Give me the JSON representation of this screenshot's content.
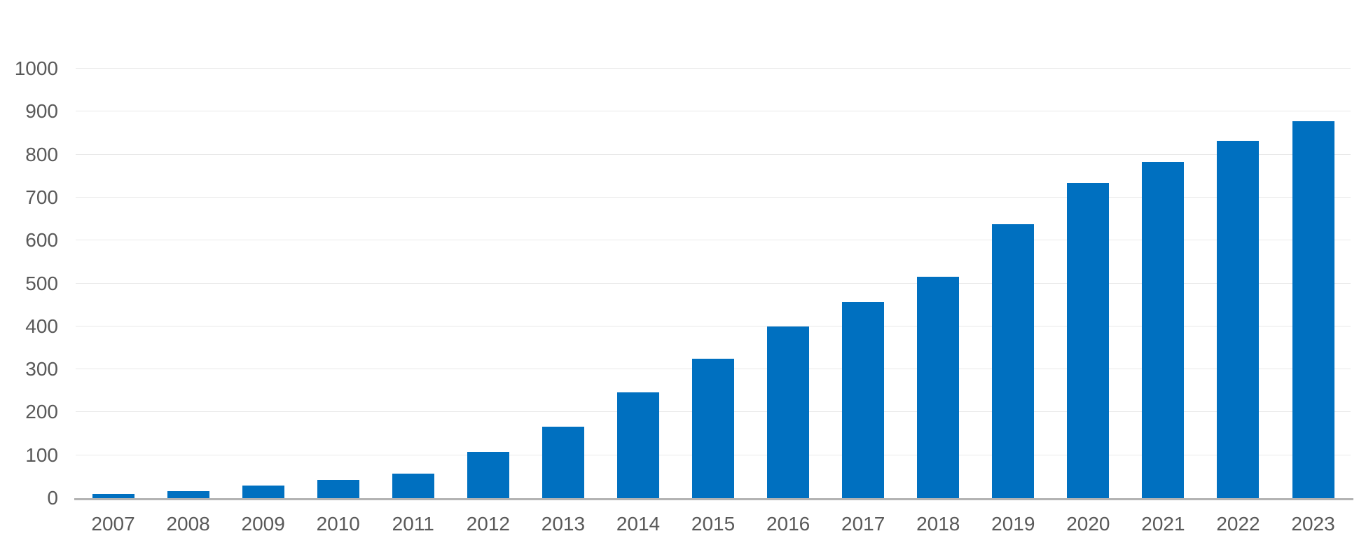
{
  "chart_data": {
    "type": "bar",
    "title": "",
    "xlabel": "",
    "ylabel": "",
    "categories": [
      "2007",
      "2008",
      "2009",
      "2010",
      "2011",
      "2012",
      "2013",
      "2014",
      "2015",
      "2016",
      "2017",
      "2018",
      "2019",
      "2020",
      "2021",
      "2022",
      "2023"
    ],
    "values": [
      9,
      17,
      29,
      42,
      57,
      108,
      166,
      247,
      325,
      400,
      457,
      516,
      638,
      734,
      783,
      832,
      878
    ],
    "ylim": [
      0,
      1000
    ],
    "y_ticks": [
      0,
      100,
      200,
      300,
      400,
      500,
      600,
      700,
      800,
      900,
      1000
    ],
    "y_tick_labels": [
      "0",
      "100",
      "200",
      "300",
      "400",
      "500",
      "600",
      "700",
      "800",
      "900",
      "1000"
    ],
    "grid": true,
    "legend_position": "none",
    "colors": {
      "bar_fill": "#0070c0",
      "gridline": "#e9e9e9",
      "axis_line": "#b3b3b3",
      "tick_text": "#595959",
      "background": "#ffffff"
    }
  }
}
